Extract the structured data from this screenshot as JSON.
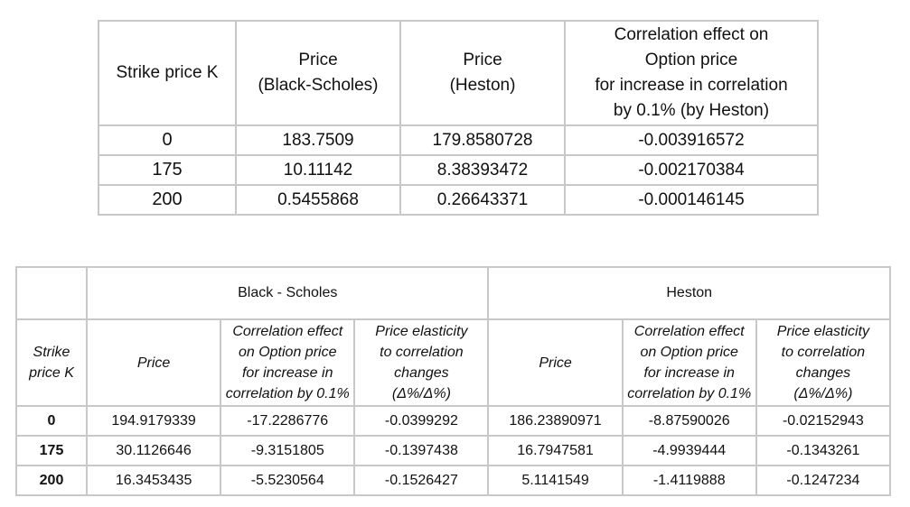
{
  "table1": {
    "headers": [
      "Strike price K",
      "Price\n(Black-Scholes)",
      "Price\n(Heston)",
      "Correlation effect on\nOption price\nfor increase in correlation\nby 0.1% (by Heston)"
    ],
    "rows": [
      [
        "0",
        "183.7509",
        "179.8580728",
        "-0.003916572"
      ],
      [
        "175",
        "10.11142",
        "8.38393472",
        "-0.002170384"
      ],
      [
        "200",
        "0.5455868",
        "0.26643371",
        "-0.000146145"
      ]
    ]
  },
  "table2": {
    "group_headers": [
      "Black - Scholes",
      "Heston"
    ],
    "strike_header": "Strike\nprice K",
    "sub_headers": [
      "Price",
      "Correlation effect\non Option price\nfor increase in\ncorrelation by 0.1%",
      "Price elasticity\nto correlation\nchanges\n(Δ%/Δ%)",
      "Price",
      "Correlation effect\non Option price\nfor increase in\ncorrelation by 0.1%",
      "Price elasticity\nto correlation\nchanges\n(Δ%/Δ%)"
    ],
    "rows": [
      [
        "0",
        "194.9179339",
        "-17.2286776",
        "-0.0399292",
        "186.23890971",
        "-8.87590026",
        "-0.02152943"
      ],
      [
        "175",
        "30.1126646",
        "-9.3151805",
        "-0.1397438",
        "16.7947581",
        "-4.9939444",
        "-0.1343261"
      ],
      [
        "200",
        "16.3453435",
        "-5.5230564",
        "-0.1526427",
        "5.1141549",
        "-1.4119888",
        "-0.1247234"
      ]
    ]
  }
}
